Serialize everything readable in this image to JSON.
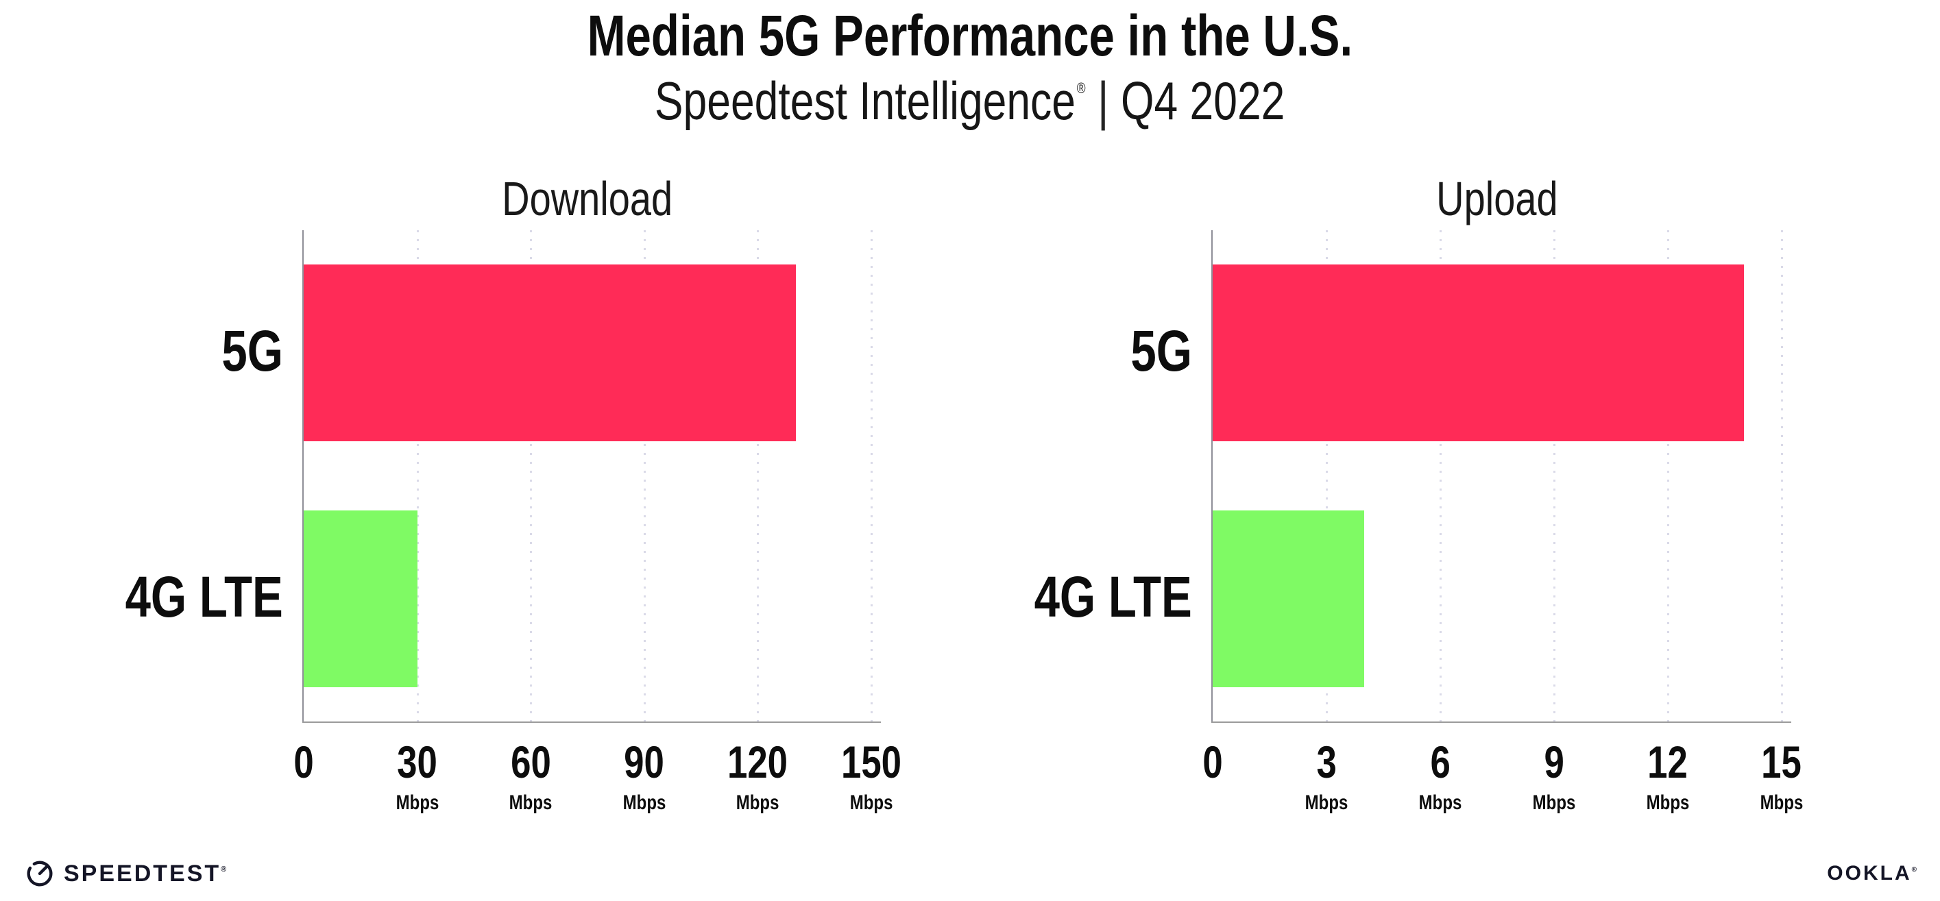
{
  "header": {
    "title": "Median 5G Performance in the U.S.",
    "subtitle_brand": "Speedtest Intelligence",
    "subtitle_reg": "®",
    "subtitle_separator": "|",
    "subtitle_period": "Q4 2022"
  },
  "footer": {
    "speedtest_wordmark": "SPEEDTEST",
    "speedtest_reg": "®",
    "speedtest_icon": "gauge-icon",
    "ookla_wordmark": "OOKLA",
    "ookla_reg": "®"
  },
  "colors": {
    "bar_5g": "#FF2B57",
    "bar_4g_lte": "#7FFA64",
    "axis": "#9B9B9B",
    "gridline": "#DADAE8",
    "text": "#0D0D0D",
    "logo": "#141526"
  },
  "chart_data": [
    {
      "type": "bar",
      "orientation": "horizontal",
      "title": "Download",
      "categories": [
        "5G",
        "4G LTE"
      ],
      "values": [
        130,
        30
      ],
      "unit": "Mbps",
      "xlim": [
        0,
        150
      ],
      "xticks": [
        0,
        30,
        60,
        90,
        120,
        150
      ],
      "tick_unit_label": "Mbps",
      "bar_colors": [
        "#FF2B57",
        "#7FFA64"
      ],
      "grid": "dotted-vertical",
      "legend": "none"
    },
    {
      "type": "bar",
      "orientation": "horizontal",
      "title": "Upload",
      "categories": [
        "5G",
        "4G LTE"
      ],
      "values": [
        14,
        4
      ],
      "unit": "Mbps",
      "xlim": [
        0,
        15
      ],
      "xticks": [
        0,
        3,
        6,
        9,
        12,
        15
      ],
      "tick_unit_label": "Mbps",
      "bar_colors": [
        "#FF2B57",
        "#7FFA64"
      ],
      "grid": "dotted-vertical",
      "legend": "none"
    }
  ]
}
